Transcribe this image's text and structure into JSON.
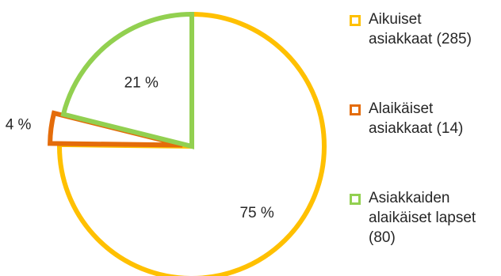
{
  "chart_data": {
    "type": "pie",
    "title": "",
    "slices": [
      {
        "label_lines": [
          "Aikuiset",
          "asiakkaat (285)"
        ],
        "value": 285,
        "percent_label": "75 %",
        "color": "#FFC000",
        "exploded": false
      },
      {
        "label_lines": [
          "Alaikäiset",
          "asiakkaat (14)"
        ],
        "value": 14,
        "percent_label": "4 %",
        "color": "#E46C0A",
        "exploded": true
      },
      {
        "label_lines": [
          "Asiakkaiden",
          "alaikäiset lapset",
          "(80)"
        ],
        "value": 80,
        "percent_label": "21 %",
        "color": "#92D050",
        "exploded": false
      }
    ],
    "legend_position": "right"
  }
}
